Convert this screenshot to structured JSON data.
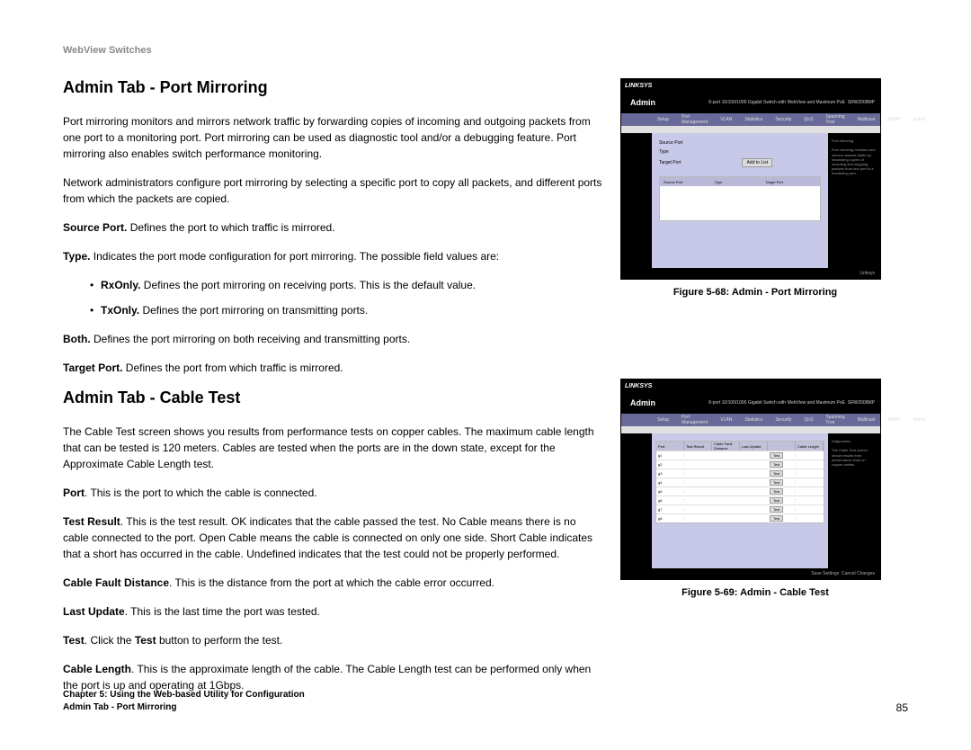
{
  "header": "WebView Switches",
  "section1": {
    "title": "Admin Tab - Port Mirroring",
    "p1": "Port mirroring monitors and mirrors network traffic by forwarding copies of incoming and outgoing packets from one port to a monitoring port. Port mirroring can be used as diagnostic tool and/or a debugging feature. Port mirroring also enables switch performance monitoring.",
    "p2": "Network administrators configure port mirroring by selecting a specific port to copy all packets, and different ports from which the packets are copied.",
    "source_port_b": "Source Port.",
    "source_port_t": " Defines the port to which traffic is mirrored.",
    "type_b": "Type.",
    "type_t": " Indicates the port mode configuration for port mirroring. The possible field values are:",
    "rx_b": "RxOnly.",
    "rx_t": " Defines the port mirroring on receiving ports. This is the default value.",
    "tx_b": "TxOnly.",
    "tx_t": " Defines the port mirroring on transmitting ports.",
    "both_b": "Both.",
    "both_t": " Defines the port mirroring on both receiving and transmitting ports.",
    "target_b": "Target Port.",
    "target_t": " Defines the port from which traffic is mirrored."
  },
  "section2": {
    "title": "Admin Tab - Cable Test",
    "p1": "The Cable Test screen shows you results from performance tests on copper cables. The maximum cable length that can be tested is 120 meters. Cables are tested when the ports are in the down state, except for the Approximate Cable Length test.",
    "port_b": "Port",
    "port_t": ". This is the port to which the cable is connected.",
    "test_result_b": "Test Result",
    "test_result_t": ". This is the test result. OK indicates that the cable passed the test. No Cable means there is no cable connected to the port. Open Cable means the cable is connected on only one side. Short Cable indicates that a short has occurred in the cable. Undefined indicates that the test could not be properly performed.",
    "cfd_b": "Cable Fault Distance",
    "cfd_t": ". This is the distance from the port at which the cable error occurred.",
    "lu_b": "Last Update",
    "lu_t": ". This is the last time the port was tested.",
    "test_b": "Test",
    "test_t1": ". Click the ",
    "test_t2": "Test",
    "test_t3": " button to perform the test.",
    "cl_b": "Cable Length",
    "cl_t": ". This is the approximate length of the cable. The Cable Length test can be performed only when the port is up and operating at 1Gbps."
  },
  "figure1": {
    "caption": "Figure 5-68: Admin - Port Mirroring",
    "logo": "LINKSYS",
    "admin": "Admin",
    "form": {
      "source": "Source Port",
      "type": "Type",
      "target": "Target Port",
      "btn": "Add to List"
    },
    "thead": {
      "c1": "Source Port",
      "c2": "Type",
      "c3": "Target Port"
    }
  },
  "figure2": {
    "caption": "Figure 5-69: Admin - Cable Test",
    "logo": "LINKSYS",
    "admin": "Admin",
    "thead": {
      "c1": "Port",
      "c2": "Test Result",
      "c3": "Cable Fault Distance",
      "c4": "Last Update",
      "c5": "Cable Length"
    },
    "rows": [
      "g1",
      "g2",
      "g3",
      "g4",
      "g5",
      "g6",
      "g7",
      "g8"
    ],
    "btn": "Test"
  },
  "footer": {
    "chapter": "Chapter 5: Using the Web-based Utility for Configuration",
    "section": "Admin Tab - Port Mirroring",
    "page": "85"
  },
  "colors": {
    "nav": "#6a6a9a",
    "panel": "#c8c8e8"
  }
}
